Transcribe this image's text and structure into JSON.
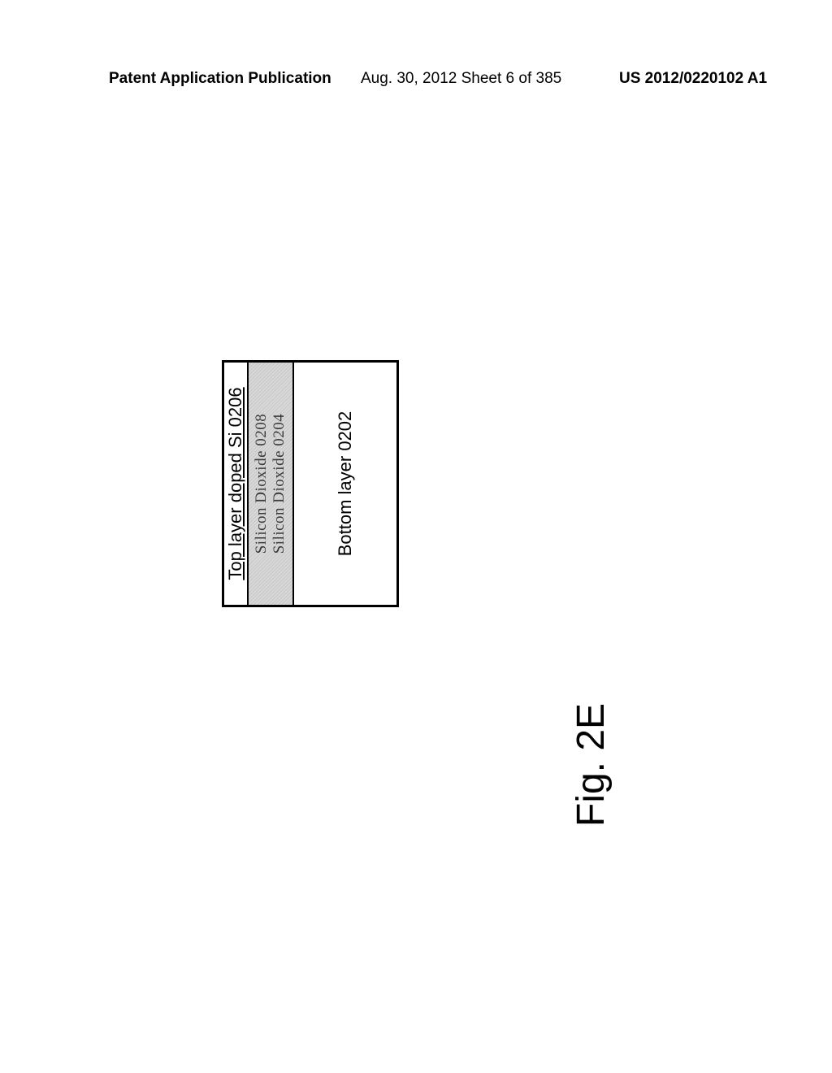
{
  "header": {
    "left": "Patent Application Publication",
    "center": "Aug. 30, 2012  Sheet 6 of 385",
    "right": "US 2012/0220102 A1"
  },
  "diagram": {
    "top_layer": "Top layer doped Si 0206",
    "oxide_upper": "Silicon Dioxide 0208",
    "oxide_lower": "Silicon Dioxide 0204",
    "bottom_layer": "Bottom layer 0202"
  },
  "figure_label": "Fig. 2E"
}
